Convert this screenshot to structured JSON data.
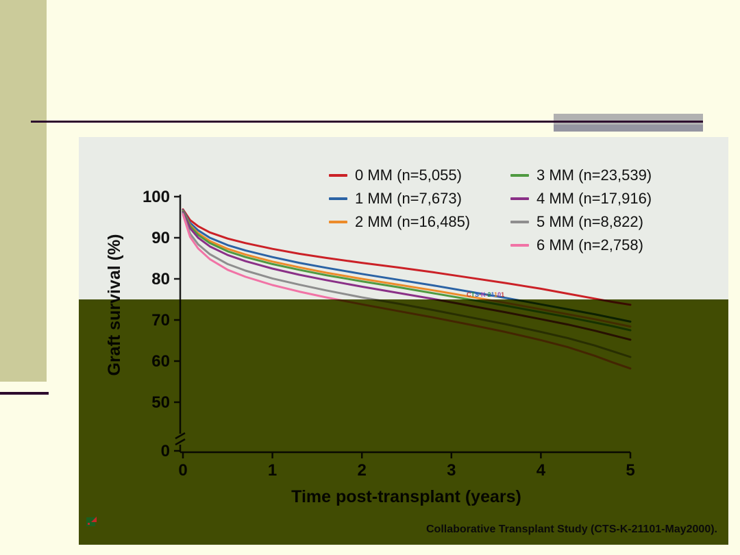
{
  "theme": {
    "slide_bg": "#fdfde7",
    "sidebar_bg": "#cbcb9a",
    "rule_color": "#2d0a2d",
    "accent_gray_light": "#b1b1b1",
    "accent_gray_dark": "#9595a1",
    "panel_bg": "#e9ece7",
    "overlay_color": "#475203",
    "axis_color": "#1a1a1a"
  },
  "footer": {
    "credit": "Collaborative Transplant Study (CTS-K-21101-May2000)."
  },
  "watermark": "CTS-K-21101",
  "chart_data": {
    "type": "line",
    "title": "",
    "xlabel": "Time post-transplant (years)",
    "ylabel": "Graft survival (%)",
    "xlim": [
      0,
      5
    ],
    "ylim": [
      0,
      100
    ],
    "axis_break_between": [
      0,
      50
    ],
    "xticks": [
      0,
      1,
      2,
      3,
      4,
      5
    ],
    "yticks_labeled": [
      100,
      90,
      80,
      70,
      60,
      50,
      0
    ],
    "grid": false,
    "legend_position": "top",
    "legend_columns": [
      3,
      4
    ],
    "series": [
      {
        "name": "0 MM (n=5,055)",
        "color": "#cb2127",
        "points": [
          [
            0,
            96.9
          ],
          [
            0.08,
            94.3
          ],
          [
            0.17,
            92.8
          ],
          [
            0.3,
            91.3
          ],
          [
            0.5,
            89.8
          ],
          [
            0.7,
            88.7
          ],
          [
            1,
            87.3
          ],
          [
            1.3,
            86.1
          ],
          [
            1.6,
            85.1
          ],
          [
            2,
            83.9
          ],
          [
            2.4,
            82.8
          ],
          [
            2.8,
            81.6
          ],
          [
            3.2,
            80.3
          ],
          [
            3.6,
            79.0
          ],
          [
            4,
            77.6
          ],
          [
            4.3,
            76.4
          ],
          [
            4.6,
            75.2
          ],
          [
            4.8,
            74.4
          ],
          [
            5,
            73.7
          ]
        ]
      },
      {
        "name": "1 MM (n=7,673)",
        "color": "#2b63a5",
        "points": [
          [
            0,
            96.7
          ],
          [
            0.08,
            93.6
          ],
          [
            0.17,
            91.8
          ],
          [
            0.3,
            90.0
          ],
          [
            0.5,
            88.2
          ],
          [
            0.7,
            86.9
          ],
          [
            1,
            85.3
          ],
          [
            1.3,
            83.9
          ],
          [
            1.6,
            82.7
          ],
          [
            2,
            81.2
          ],
          [
            2.4,
            79.8
          ],
          [
            2.8,
            78.4
          ],
          [
            3.2,
            76.9
          ],
          [
            3.6,
            75.4
          ],
          [
            4,
            73.8
          ],
          [
            4.3,
            72.6
          ],
          [
            4.6,
            71.4
          ],
          [
            4.8,
            70.5
          ],
          [
            5,
            69.6
          ]
        ]
      },
      {
        "name": "2 MM (n=16,485)",
        "color": "#ec8b2a",
        "points": [
          [
            0,
            96.5
          ],
          [
            0.08,
            93.1
          ],
          [
            0.17,
            91.1
          ],
          [
            0.3,
            89.2
          ],
          [
            0.5,
            87.3
          ],
          [
            0.7,
            85.9
          ],
          [
            1,
            84.2
          ],
          [
            1.3,
            82.8
          ],
          [
            1.6,
            81.5
          ],
          [
            2,
            80.0
          ],
          [
            2.4,
            78.6
          ],
          [
            2.8,
            77.2
          ],
          [
            3.2,
            75.7
          ],
          [
            3.6,
            74.2
          ],
          [
            4,
            72.6
          ],
          [
            4.3,
            71.4
          ],
          [
            4.6,
            70.2
          ],
          [
            4.8,
            69.3
          ],
          [
            5,
            68.4
          ]
        ]
      },
      {
        "name": "3 MM (n=23,539)",
        "color": "#4f9a41",
        "points": [
          [
            0,
            96.4
          ],
          [
            0.08,
            92.8
          ],
          [
            0.17,
            90.7
          ],
          [
            0.3,
            88.7
          ],
          [
            0.5,
            86.7
          ],
          [
            0.7,
            85.3
          ],
          [
            1,
            83.6
          ],
          [
            1.3,
            82.2
          ],
          [
            1.6,
            80.9
          ],
          [
            2,
            79.4
          ],
          [
            2.4,
            78.0
          ],
          [
            2.8,
            76.5
          ],
          [
            3.2,
            75.0
          ],
          [
            3.6,
            73.5
          ],
          [
            4,
            71.9
          ],
          [
            4.3,
            70.7
          ],
          [
            4.6,
            69.4
          ],
          [
            4.8,
            68.5
          ],
          [
            5,
            67.5
          ]
        ]
      },
      {
        "name": "4 MM (n=17,916)",
        "color": "#8a3087",
        "points": [
          [
            0,
            96.2
          ],
          [
            0.08,
            92.3
          ],
          [
            0.17,
            90.0
          ],
          [
            0.3,
            87.9
          ],
          [
            0.5,
            85.8
          ],
          [
            0.7,
            84.3
          ],
          [
            1,
            82.5
          ],
          [
            1.3,
            81.0
          ],
          [
            1.6,
            79.7
          ],
          [
            2,
            78.1
          ],
          [
            2.4,
            76.6
          ],
          [
            2.8,
            75.1
          ],
          [
            3.2,
            73.5
          ],
          [
            3.6,
            71.9
          ],
          [
            4,
            70.2
          ],
          [
            4.3,
            68.9
          ],
          [
            4.6,
            67.4
          ],
          [
            4.8,
            66.3
          ],
          [
            5,
            65.2
          ]
        ]
      },
      {
        "name": "5 MM (n=8,822)",
        "color": "#8e8e8e",
        "points": [
          [
            0,
            95.9
          ],
          [
            0.08,
            91.0
          ],
          [
            0.17,
            88.4
          ],
          [
            0.3,
            86.0
          ],
          [
            0.5,
            83.6
          ],
          [
            0.7,
            82.0
          ],
          [
            1,
            80.1
          ],
          [
            1.3,
            78.6
          ],
          [
            1.6,
            77.2
          ],
          [
            2,
            75.5
          ],
          [
            2.4,
            74.0
          ],
          [
            2.8,
            72.4
          ],
          [
            3.2,
            70.7
          ],
          [
            3.6,
            69.0
          ],
          [
            4,
            67.1
          ],
          [
            4.3,
            65.6
          ],
          [
            4.6,
            63.8
          ],
          [
            4.8,
            62.4
          ],
          [
            5,
            61.0
          ]
        ]
      },
      {
        "name": "6 MM (n=2,758)",
        "color": "#f173a6",
        "points": [
          [
            0,
            95.7
          ],
          [
            0.08,
            90.2
          ],
          [
            0.17,
            87.4
          ],
          [
            0.3,
            84.8
          ],
          [
            0.5,
            82.2
          ],
          [
            0.7,
            80.5
          ],
          [
            1,
            78.5
          ],
          [
            1.3,
            76.9
          ],
          [
            1.6,
            75.5
          ],
          [
            2,
            73.8
          ],
          [
            2.4,
            72.2
          ],
          [
            2.8,
            70.6
          ],
          [
            3.2,
            68.9
          ],
          [
            3.6,
            67.1
          ],
          [
            4,
            65.1
          ],
          [
            4.3,
            63.4
          ],
          [
            4.6,
            61.3
          ],
          [
            4.8,
            59.7
          ],
          [
            5,
            58.2
          ]
        ]
      }
    ]
  }
}
